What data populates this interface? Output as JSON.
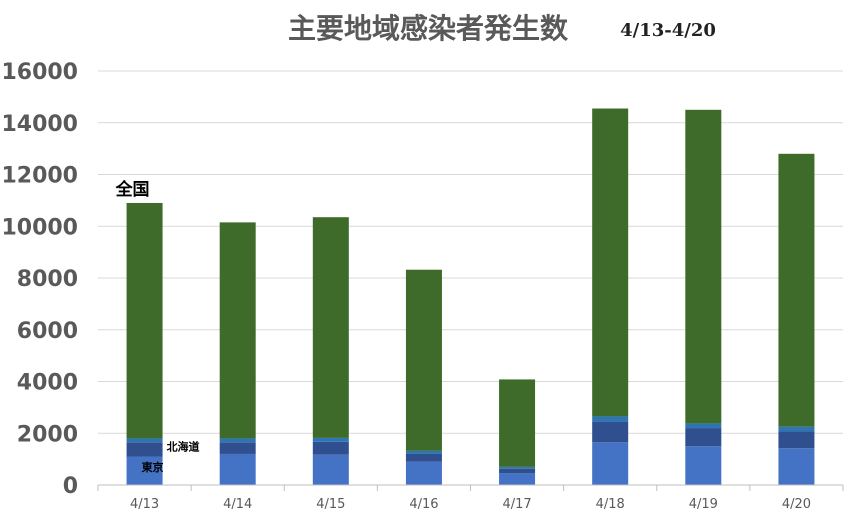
{
  "chart_data": {
    "type": "bar",
    "stacked": true,
    "title": "主要地域感染者発生数",
    "subtitle": "4/13-4/20",
    "xlabel": "",
    "ylabel": "",
    "ylim": [
      0,
      16000
    ],
    "yticks": [
      0,
      2000,
      4000,
      6000,
      8000,
      10000,
      12000,
      14000,
      16000
    ],
    "grid": true,
    "categories": [
      "4/13",
      "4/14",
      "4/15",
      "4/16",
      "4/17",
      "4/18",
      "4/19",
      "4/20"
    ],
    "series": [
      {
        "name": "東京",
        "color": "#4472C4",
        "values": [
          1100,
          1200,
          1170,
          900,
          450,
          1650,
          1500,
          1420
        ]
      },
      {
        "name": "北海道",
        "color": "#2F4F8F",
        "values": [
          550,
          450,
          500,
          300,
          180,
          800,
          700,
          650
        ]
      },
      {
        "name": "",
        "color": "#2E75B6",
        "values": [
          150,
          150,
          150,
          120,
          70,
          200,
          180,
          180
        ]
      },
      {
        "name": "全国",
        "color": "#3E6B2A",
        "values": [
          9100,
          8350,
          8530,
          7000,
          3380,
          11900,
          12120,
          10550
        ]
      }
    ],
    "annotations": [
      {
        "text": "全国",
        "category": "4/13",
        "anchor": "above"
      },
      {
        "text": "北海道",
        "category": "4/13",
        "anchor": "right"
      },
      {
        "text": "東京",
        "category": "4/13",
        "anchor": "right"
      }
    ]
  }
}
